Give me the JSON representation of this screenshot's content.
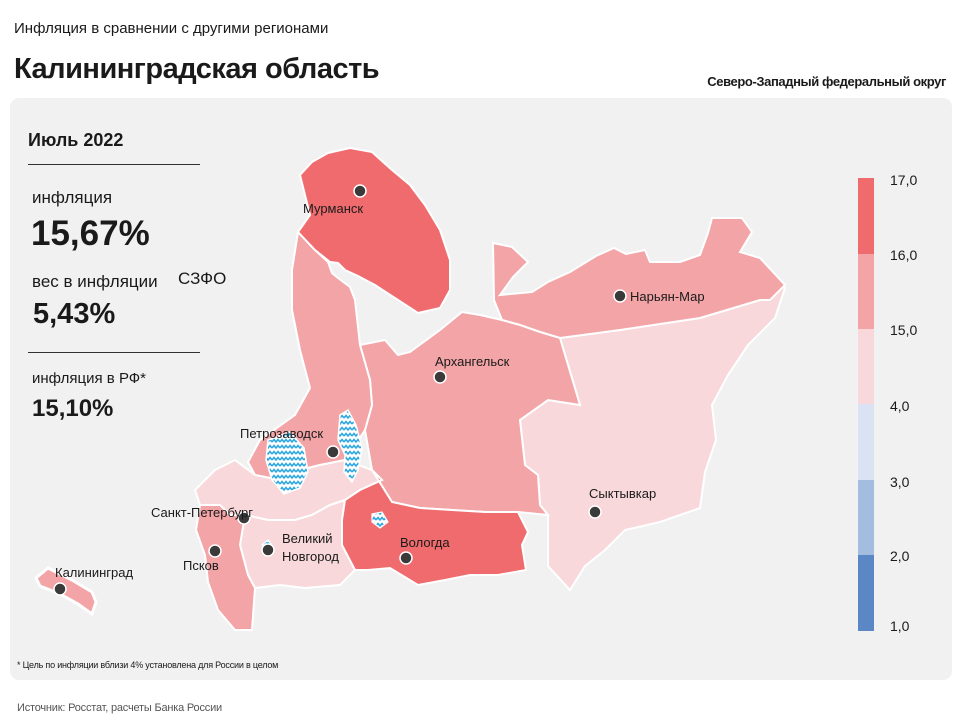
{
  "header": {
    "supertitle": "Инфляция в сравнении с другими регионами",
    "title": "Калининградская область",
    "district": "Северо-Западный федеральный округ"
  },
  "stats": {
    "period": "Июль 2022",
    "inflation_label": "инфляция",
    "inflation_value": "15,67%",
    "weight_label": "вес в инфляции",
    "weight_label_suffix": "СЗФО",
    "weight_value": "5,43%",
    "rf_label": "инфляция  в РФ*",
    "rf_value": "15,10%"
  },
  "cities": {
    "murmansk": "Мурманск",
    "naryan_mar": "Нарьян-Мар",
    "arkhangelsk": "Архангельск",
    "petrozavodsk": "Петрозаводск",
    "spb": "Санкт-Петербург",
    "velikiy_novgorod_1": "Великий",
    "velikiy_novgorod_2": "Новгород",
    "vologda": "Вологда",
    "syktyvkar": "Сыктывкар",
    "pskov": "Псков",
    "kaliningrad": "Калининград"
  },
  "legend": {
    "labels": [
      "17,0",
      "16,0",
      "15,0",
      "4,0",
      "3,0",
      "2,0",
      "1,0"
    ],
    "colors": [
      "#f06b6d",
      "#f3a4a6",
      "#f8d8da",
      "#dae3f3",
      "#a3bddf",
      "#5b87c4"
    ]
  },
  "colors": {
    "panel": "#f1f1f1",
    "high": "#f06b6d",
    "mid": "#f3a4a6",
    "low": "#f8d8da",
    "water": "#2ca6df"
  },
  "footnote": "* Цель по инфляции вблизи 4% установлена для России в целом",
  "source": "Источник: Росстат, расчеты Банка России"
}
